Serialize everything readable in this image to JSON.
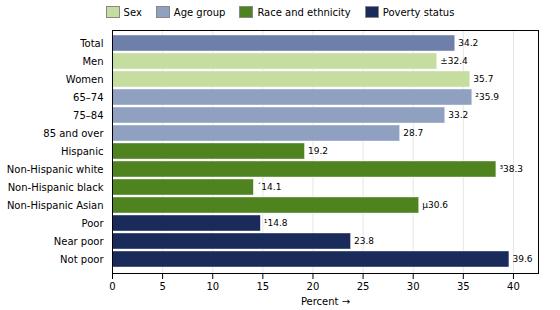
{
  "chart_data": {
    "type": "bar",
    "orientation": "horizontal",
    "categories": [
      "Total",
      "Men",
      "Women",
      "65–74",
      "75–84",
      "85 and over",
      "Hispanic",
      "Non-Hispanic white",
      "Non-Hispanic black",
      "Non-Hispanic Asian",
      "Poor",
      "Near poor",
      "Not poor"
    ],
    "series": [
      {
        "color": "#6e7faa",
        "values": [
          34.2,
          null,
          null,
          null,
          null,
          null,
          null,
          null,
          null,
          null,
          null,
          null,
          null
        ],
        "value_labels": [
          "34.2",
          null,
          null,
          null,
          null,
          null,
          null,
          null,
          null,
          null,
          null,
          null,
          null
        ]
      },
      {
        "name": "Sex",
        "color": "#c5dea0",
        "values": [
          null,
          32.4,
          35.7,
          null,
          null,
          null,
          null,
          null,
          null,
          null,
          null,
          null,
          null
        ],
        "value_labels": [
          null,
          "±32.4",
          "35.7",
          null,
          null,
          null,
          null,
          null,
          null,
          null,
          null,
          null,
          null
        ]
      },
      {
        "name": "Age group",
        "color": "#8fa0c0",
        "values": [
          null,
          null,
          null,
          35.9,
          33.2,
          28.7,
          null,
          null,
          null,
          null,
          null,
          null,
          null
        ],
        "value_labels": [
          null,
          null,
          null,
          "²35.9",
          "33.2",
          "28.7",
          null,
          null,
          null,
          null,
          null,
          null,
          null
        ]
      },
      {
        "name": "Race and ethnicity",
        "color": "#4e8320",
        "values": [
          null,
          null,
          null,
          null,
          null,
          null,
          19.2,
          38.3,
          14.1,
          30.6,
          null,
          null,
          null
        ],
        "value_labels": [
          null,
          null,
          null,
          null,
          null,
          null,
          "19.2",
          "³38.3",
          "´14.1",
          "µ30.6",
          null,
          null,
          null
        ]
      },
      {
        "name": "Poverty status",
        "color": "#1a2a5a",
        "values": [
          null,
          null,
          null,
          null,
          null,
          null,
          null,
          null,
          null,
          null,
          14.8,
          23.8,
          39.6
        ],
        "value_labels": [
          null,
          null,
          null,
          null,
          null,
          null,
          null,
          null,
          null,
          null,
          "¹14.8",
          "23.8",
          "39.6"
        ]
      }
    ],
    "xlabel": "Percent",
    "xlim": [
      0,
      42.5
    ],
    "xticks": [
      0,
      5,
      10,
      15,
      20,
      25,
      30,
      35,
      40
    ],
    "grid": true,
    "legend": "top",
    "data_labels": true
  }
}
